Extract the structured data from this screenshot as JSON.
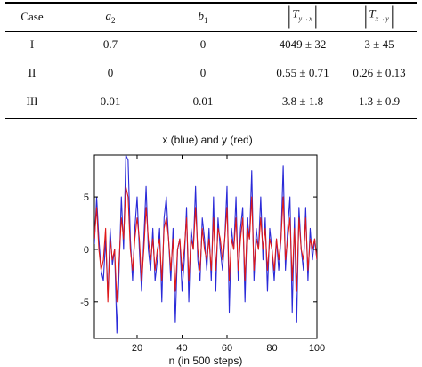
{
  "table": {
    "headers": {
      "case": "Case",
      "a2": {
        "symbol": "a",
        "sub": "2"
      },
      "b1": {
        "symbol": "b",
        "sub": "1"
      },
      "tyx": {
        "symbol": "T",
        "sub": "y→x"
      },
      "txy": {
        "symbol": "T",
        "sub": "x→y"
      }
    },
    "rows": [
      {
        "case": "I",
        "a2": "0.7",
        "b1": "0",
        "tyx": "4049 ± 32",
        "txy": "3 ± 45"
      },
      {
        "case": "II",
        "a2": "0",
        "b1": "0",
        "tyx": "0.55 ± 0.71",
        "txy": "0.26 ± 0.13"
      },
      {
        "case": "III",
        "a2": "0.01",
        "b1": "0.01",
        "tyx": "3.8 ± 1.8",
        "txy": "1.3 ± 0.9"
      }
    ]
  },
  "chart_data": {
    "type": "line",
    "title": "x (blue) and y (red)",
    "xlabel": "n (in 500 steps)",
    "ylabel": "",
    "xlim": [
      1,
      100
    ],
    "ylim": [
      -8.5,
      9
    ],
    "xticks": [
      20,
      40,
      60,
      80,
      100
    ],
    "yticks": [
      -5,
      0,
      5
    ],
    "grid": false,
    "series": [
      {
        "color": "#2a2ad8",
        "values": [
          0.5,
          5,
          1,
          -2,
          -3,
          1,
          -4.5,
          2,
          -1.5,
          0,
          -8,
          -2,
          5,
          0,
          9,
          8.5,
          1,
          -3,
          2,
          5,
          0,
          -4,
          1,
          6,
          0,
          -2,
          2,
          -3,
          -1,
          2,
          -5,
          3,
          5,
          1,
          -3,
          2,
          -7,
          0,
          1,
          -4,
          -1,
          4,
          -5,
          2,
          0,
          6,
          -1,
          -3,
          3,
          1,
          -2,
          2,
          -3,
          5,
          -4,
          3,
          0,
          -2,
          1,
          6,
          -6,
          2,
          0,
          5,
          -3,
          2,
          4,
          -5,
          3,
          1,
          7.5,
          -3,
          2,
          0,
          5,
          -1,
          3,
          -4,
          2,
          0,
          -3,
          1,
          -2,
          1,
          8,
          -2,
          2,
          5,
          -6,
          3,
          -7,
          4,
          0,
          -2,
          4,
          -3,
          2,
          -1,
          1,
          -1
        ]
      },
      {
        "color": "#e01818",
        "values": [
          1,
          4,
          0,
          -2,
          -1,
          2,
          -5,
          1,
          -1,
          0,
          -5,
          -1,
          3,
          1,
          6,
          5,
          0,
          -2,
          1,
          3,
          1,
          -3,
          0,
          4,
          1,
          -1,
          1,
          -2,
          0,
          1,
          -3,
          2,
          3,
          1,
          -2,
          1,
          -4,
          0,
          1,
          -2,
          0,
          3,
          -3,
          1,
          0,
          4,
          0,
          -2,
          2,
          0,
          -1,
          1,
          -2,
          3,
          -2,
          2,
          1,
          -1,
          1,
          4,
          -3,
          1,
          0,
          3,
          -2,
          1,
          3,
          -3,
          2,
          1,
          5,
          -2,
          1,
          0,
          3,
          0,
          2,
          -2,
          1,
          0,
          -2,
          1,
          -1,
          1,
          5,
          -1,
          1,
          3,
          -3,
          2,
          -4,
          3,
          0,
          -1,
          3,
          -2,
          1,
          0,
          1,
          -1
        ]
      }
    ]
  }
}
